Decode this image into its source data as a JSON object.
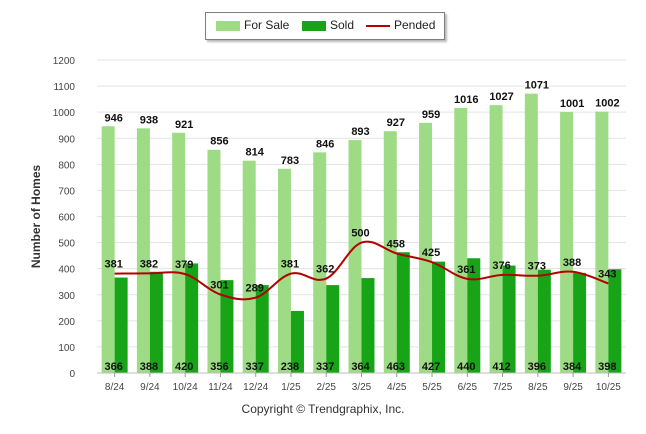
{
  "chart_data": {
    "type": "bar",
    "title": "",
    "xlabel": "",
    "ylabel": "Number of Homes",
    "ylim": [
      0,
      1200
    ],
    "yticks": [
      0,
      100,
      200,
      300,
      400,
      500,
      600,
      700,
      800,
      900,
      1000,
      1100,
      1200
    ],
    "categories": [
      "8/24",
      "9/24",
      "10/24",
      "11/24",
      "12/24",
      "1/25",
      "2/25",
      "3/25",
      "4/25",
      "5/25",
      "6/25",
      "7/25",
      "8/25",
      "9/25",
      "10/25"
    ],
    "series": [
      {
        "name": "For Sale",
        "type": "bar",
        "color": "#9ddc84",
        "values": [
          946,
          938,
          921,
          856,
          814,
          783,
          846,
          893,
          927,
          959,
          1016,
          1027,
          1071,
          1001,
          1002
        ]
      },
      {
        "name": "Sold",
        "type": "bar",
        "color": "#17a417",
        "values": [
          366,
          388,
          420,
          356,
          337,
          238,
          337,
          364,
          463,
          427,
          440,
          412,
          396,
          384,
          398
        ]
      },
      {
        "name": "Pended",
        "type": "line",
        "color": "#b30000",
        "values": [
          381,
          382,
          379,
          301,
          289,
          381,
          362,
          500,
          458,
          425,
          361,
          376,
          373,
          388,
          343
        ]
      }
    ],
    "legend_position": "top-center",
    "grid": true
  },
  "legend": {
    "for_sale": "For Sale",
    "sold": "Sold",
    "pended": "Pended"
  },
  "footer": "Copyright © Trendgraphix, Inc."
}
